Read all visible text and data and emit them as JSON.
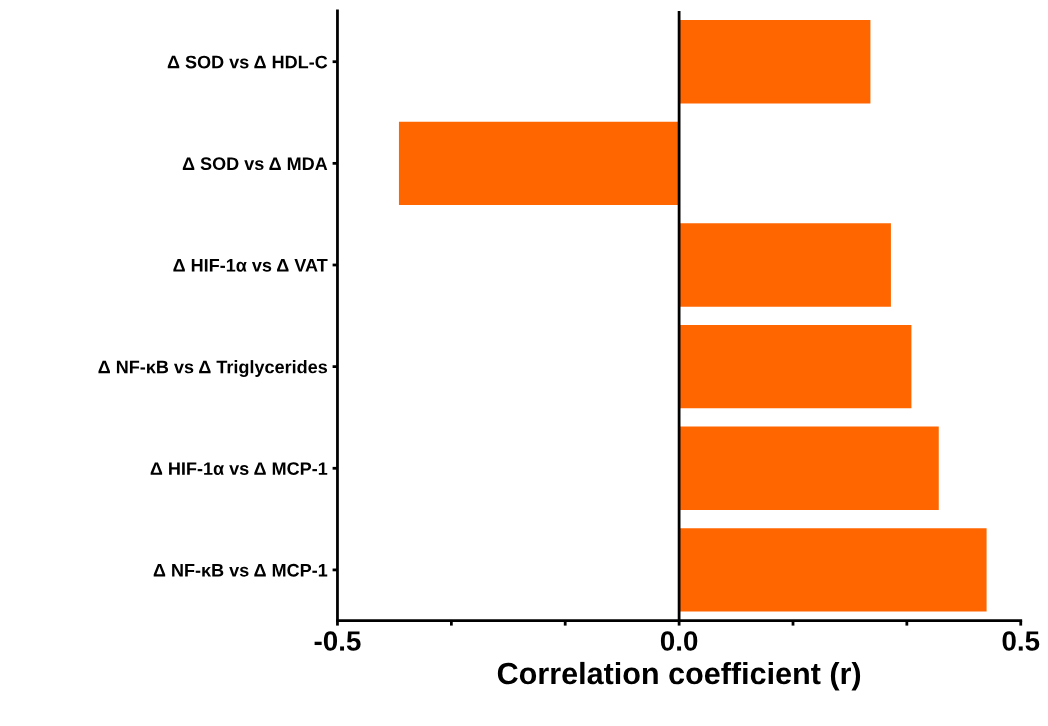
{
  "chart_data": {
    "type": "bar",
    "orientation": "horizontal",
    "xlabel": "Correlation coefficient (r)",
    "categories": [
      "Δ SOD vs Δ HDL-C",
      "Δ SOD vs Δ MDA",
      "Δ HIF-1α vs Δ VAT",
      "Δ NF-κB vs Δ Triglycerides",
      "Δ HIF-1α vs Δ MCP-1",
      "Δ NF-κB vs Δ MCP-1"
    ],
    "values": [
      0.28,
      -0.41,
      0.31,
      0.34,
      0.38,
      0.45
    ],
    "color": "#ff6600",
    "xlim": [
      -0.5,
      0.5
    ],
    "xticks": [
      -0.5,
      {
        "value": -0.3333,
        "label": null
      },
      {
        "value": -0.1667,
        "label": null
      },
      {
        "value": 0,
        "label": "0.0"
      },
      {
        "value": 0.1667,
        "label": null
      },
      {
        "value": 0.3333,
        "label": null
      },
      0.5
    ],
    "ref_lines": [
      {
        "axis": "x",
        "value": 0,
        "color": "#000000",
        "line_style": "solid"
      }
    ],
    "grid": false,
    "legend": false
  }
}
